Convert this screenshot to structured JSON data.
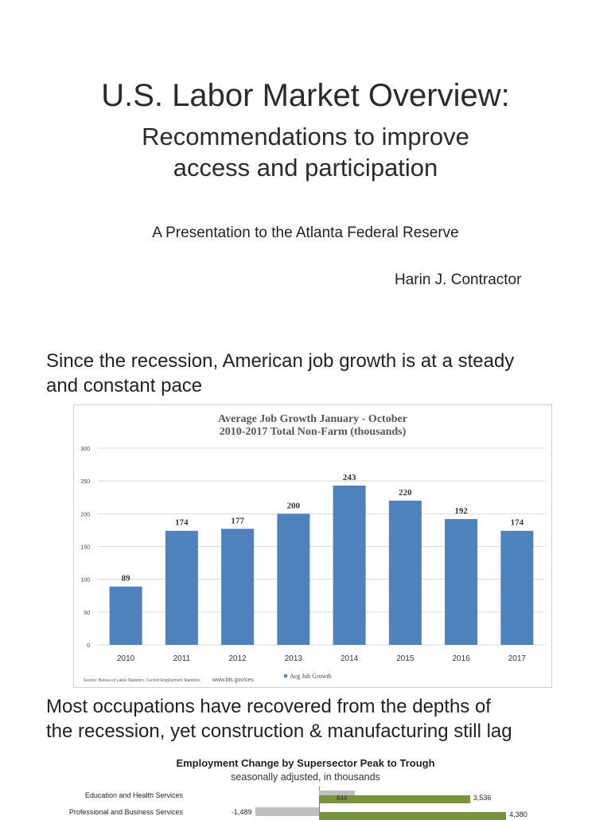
{
  "slide1": {
    "title": "U.S. Labor Market Overview:",
    "subtitle_line1": "Recommendations to improve",
    "subtitle_line2": "access and participation",
    "presented_to": "A Presentation to the Atlanta Federal Reserve",
    "author": "Harin J. Contractor"
  },
  "slide2": {
    "heading_line1": "Since the recession, American job growth is at a steady",
    "heading_line2": "and constant pace"
  },
  "slide3": {
    "heading_line1": "Most occupations have recovered from the depths of",
    "heading_line2": "the recession, yet construction & manufacturing still lag"
  },
  "chart_data": [
    {
      "type": "bar",
      "title": "Average Job Growth January - October",
      "subtitle": "2010-2017 Total Non-Farm (thousands)",
      "categories": [
        "2010",
        "2011",
        "2012",
        "2013",
        "2014",
        "2015",
        "2016",
        "2017"
      ],
      "series": [
        {
          "name": "Avg Job Growth",
          "values": [
            89,
            174,
            177,
            200,
            243,
            220,
            192,
            174
          ],
          "color": "#4f81bd"
        }
      ],
      "yticks": [
        "0",
        "50",
        "100",
        "150",
        "200",
        "250",
        "300"
      ],
      "ylim": [
        0,
        300
      ],
      "grid": true,
      "legend_position": "bottom",
      "source": "Source: Bureau of Labor Statistics, Current Employment Statistics,",
      "source_url": "www.bls.gov/ces"
    },
    {
      "type": "bar",
      "orientation": "horizontal",
      "title": "Employment Change by Supersector Peak to Trough",
      "subtitle": "seasonally adjusted, in thousands",
      "categories": [
        "Education and Health Services",
        "Professional and Business Services"
      ],
      "series": [
        {
          "values": [
            844,
            -1489
          ],
          "labels": [
            "844",
            "-1,489"
          ],
          "color": "#bfbfbf"
        },
        {
          "values": [
            3536,
            4380
          ],
          "labels": [
            "3,536",
            "4,380"
          ],
          "color": "#77933c"
        }
      ]
    }
  ]
}
